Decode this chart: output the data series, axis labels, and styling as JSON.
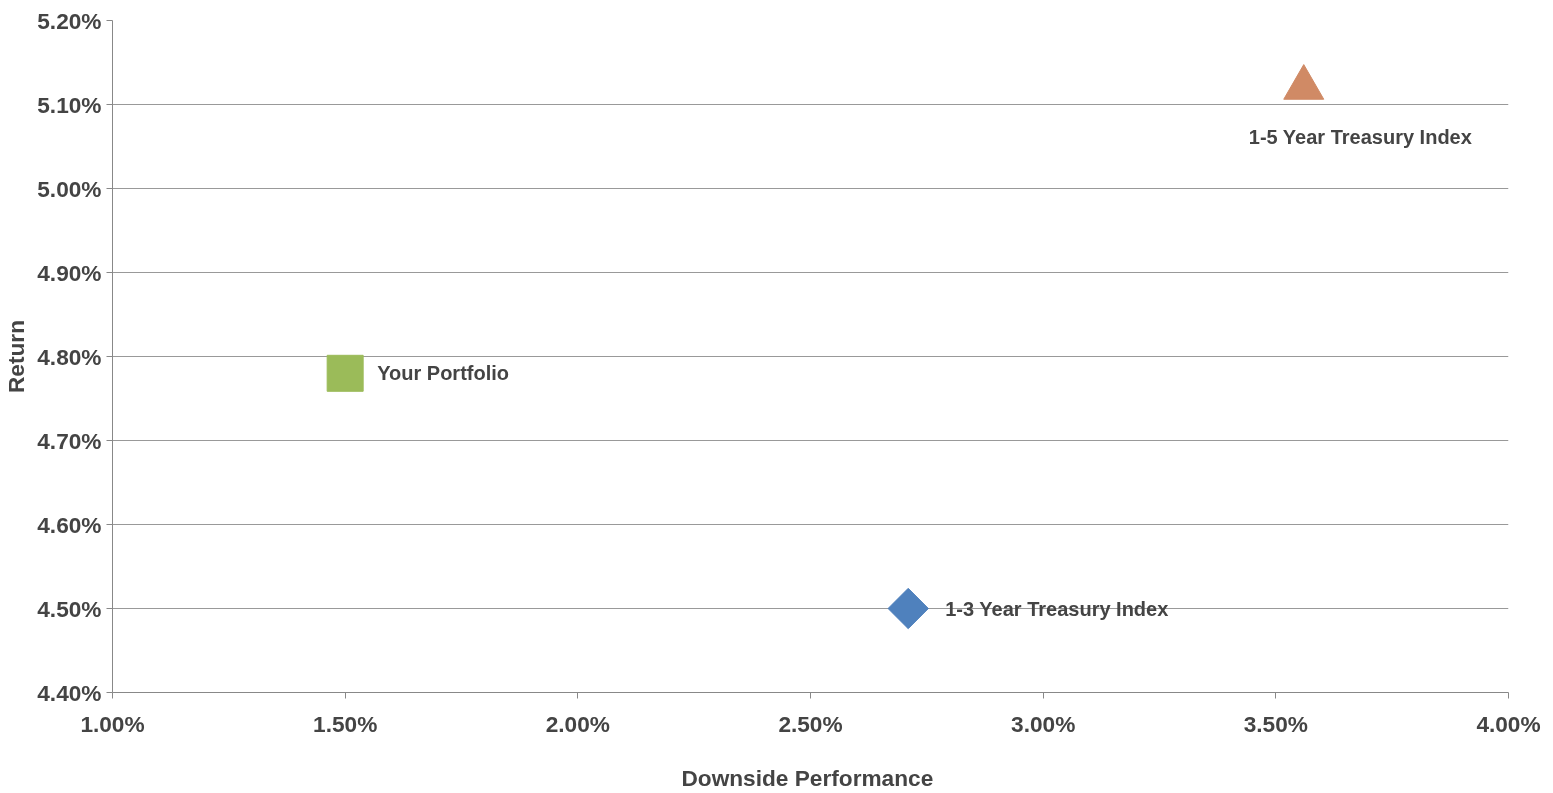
{
  "chart_data": {
    "type": "scatter",
    "xlabel": "Downside  Performance",
    "ylabel": "Return",
    "xlim": [
      1.0,
      4.0
    ],
    "ylim": [
      4.4,
      5.2
    ],
    "xticks": [
      {
        "value": 1.0,
        "label": "1.00%"
      },
      {
        "value": 1.5,
        "label": "1.50%"
      },
      {
        "value": 2.0,
        "label": "2.00%"
      },
      {
        "value": 2.5,
        "label": "2.50%"
      },
      {
        "value": 3.0,
        "label": "3.00%"
      },
      {
        "value": 3.5,
        "label": "3.50%"
      },
      {
        "value": 4.0,
        "label": "4.00%"
      }
    ],
    "yticks": [
      {
        "value": 4.4,
        "label": "4.40%"
      },
      {
        "value": 4.5,
        "label": "4.50%"
      },
      {
        "value": 4.6,
        "label": "4.60%"
      },
      {
        "value": 4.7,
        "label": "4.70%"
      },
      {
        "value": 4.8,
        "label": "4.80%"
      },
      {
        "value": 4.9,
        "label": "4.90%"
      },
      {
        "value": 5.0,
        "label": "5.00%"
      },
      {
        "value": 5.1,
        "label": "5.10%"
      },
      {
        "value": 5.2,
        "label": "5.20%"
      }
    ],
    "grid": "y",
    "legend": false,
    "series": [
      {
        "name": "Your Portfolio",
        "color": "#9bbb59",
        "marker": "square",
        "x": [
          1.5
        ],
        "values": [
          4.78
        ]
      },
      {
        "name": "1-3 Year Treasury Index",
        "color": "#4f81bd",
        "marker": "diamond",
        "x": [
          2.71
        ],
        "values": [
          4.5
        ]
      },
      {
        "name": "1-5 Year Treasury Index",
        "color": "#d08a65",
        "marker": "triangle",
        "x": [
          3.56
        ],
        "values": [
          5.12
        ]
      }
    ]
  }
}
